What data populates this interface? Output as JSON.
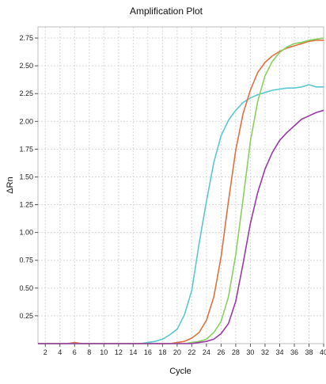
{
  "chart_data": {
    "type": "line",
    "title": "Amplification Plot",
    "xlabel": "Cycle",
    "ylabel": "ΔRn",
    "xlim": [
      1,
      40
    ],
    "ylim": [
      0,
      2.85
    ],
    "x_ticks": [
      2,
      4,
      6,
      8,
      10,
      12,
      14,
      16,
      18,
      20,
      22,
      24,
      26,
      28,
      30,
      32,
      34,
      36,
      38,
      40
    ],
    "x_tick_labels": [
      "2",
      "4",
      "6",
      "8",
      "10",
      "12",
      "14",
      "16",
      "18",
      "20",
      "22",
      "24",
      "26",
      "28",
      "30",
      "32",
      "34",
      "36",
      "38",
      "40"
    ],
    "y_ticks": [
      0.25,
      0.5,
      0.75,
      1.0,
      1.25,
      1.5,
      1.75,
      2.0,
      2.25,
      2.5,
      2.75
    ],
    "y_tick_labels": [
      "0.25",
      "0.50",
      "0.75",
      "1.00",
      "1.25",
      "1.50",
      "1.75",
      "2.00",
      "2.25",
      "2.50",
      "2.75"
    ],
    "grid": true,
    "x": [
      1,
      2,
      3,
      4,
      5,
      6,
      7,
      8,
      9,
      10,
      11,
      12,
      13,
      14,
      15,
      16,
      17,
      18,
      19,
      20,
      21,
      22,
      23,
      24,
      25,
      26,
      27,
      28,
      29,
      30,
      31,
      32,
      33,
      34,
      35,
      36,
      37,
      38,
      39,
      40
    ],
    "series": [
      {
        "color": "#5bc8d0",
        "values": [
          0,
          0,
          0,
          0,
          0,
          0,
          0,
          0,
          0,
          0,
          0,
          0,
          0,
          0,
          0,
          0.01,
          0.02,
          0.04,
          0.08,
          0.13,
          0.26,
          0.48,
          0.9,
          1.28,
          1.63,
          1.87,
          2.01,
          2.1,
          2.17,
          2.21,
          2.24,
          2.26,
          2.28,
          2.29,
          2.3,
          2.3,
          2.31,
          2.33,
          2.31,
          2.31
        ]
      },
      {
        "color": "#e07040",
        "values": [
          0,
          0,
          0,
          0,
          0,
          0.01,
          0,
          0,
          0,
          0,
          0,
          0,
          0,
          0,
          0,
          0,
          0,
          0,
          0,
          0.01,
          0.02,
          0.05,
          0.1,
          0.21,
          0.42,
          0.78,
          1.28,
          1.74,
          2.07,
          2.28,
          2.44,
          2.53,
          2.59,
          2.63,
          2.66,
          2.68,
          2.7,
          2.72,
          2.73,
          2.73
        ]
      },
      {
        "color": "#88d060",
        "values": [
          0,
          0,
          0,
          0,
          0,
          0,
          0,
          0,
          0,
          0,
          0,
          0,
          0,
          0,
          0,
          0,
          0,
          0,
          0,
          0,
          0,
          0.01,
          0.02,
          0.04,
          0.1,
          0.2,
          0.42,
          0.8,
          1.3,
          1.82,
          2.18,
          2.41,
          2.54,
          2.62,
          2.67,
          2.7,
          2.71,
          2.73,
          2.74,
          2.75
        ]
      },
      {
        "color": "#9a3aa8",
        "values": [
          0,
          0,
          0,
          0,
          0,
          0,
          0,
          0,
          0,
          0,
          0,
          0,
          0,
          0,
          0,
          0,
          0,
          0,
          0,
          0,
          0,
          0,
          0.01,
          0.02,
          0.04,
          0.09,
          0.18,
          0.38,
          0.72,
          1.08,
          1.36,
          1.57,
          1.72,
          1.83,
          1.9,
          1.96,
          2.02,
          2.05,
          2.08,
          2.1
        ]
      }
    ]
  }
}
